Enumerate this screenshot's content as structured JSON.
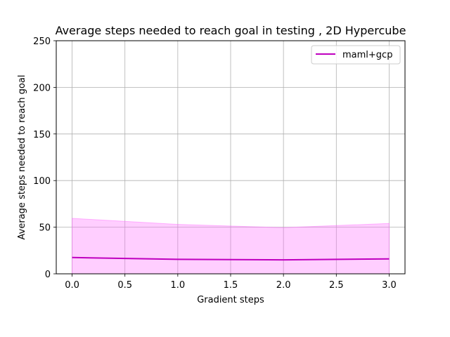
{
  "chart_data": {
    "type": "line",
    "title": "Average steps needed to reach goal in testing , 2D Hypercube",
    "xlabel": "Gradient steps",
    "ylabel": "Average steps needed to reach goal",
    "xlim": [
      -0.15,
      3.15
    ],
    "ylim": [
      0,
      250
    ],
    "xticks": [
      0.0,
      0.5,
      1.0,
      1.5,
      2.0,
      2.5,
      3.0
    ],
    "xtick_labels": [
      "0.0",
      "0.5",
      "1.0",
      "1.5",
      "2.0",
      "2.5",
      "3.0"
    ],
    "yticks": [
      0,
      50,
      100,
      150,
      200,
      250
    ],
    "ytick_labels": [
      "0",
      "50",
      "100",
      "150",
      "200",
      "250"
    ],
    "grid": true,
    "legend_position": "top-right",
    "series": [
      {
        "name": "maml+gcp",
        "color": "#bf00bf",
        "band_color": "#ff66ff",
        "x": [
          0,
          1,
          2,
          3
        ],
        "values": [
          17.5,
          15.5,
          15.0,
          16.0
        ],
        "upper": [
          59.5,
          53.0,
          49.5,
          54.0
        ],
        "lower": [
          0,
          0,
          0,
          0
        ]
      }
    ]
  }
}
